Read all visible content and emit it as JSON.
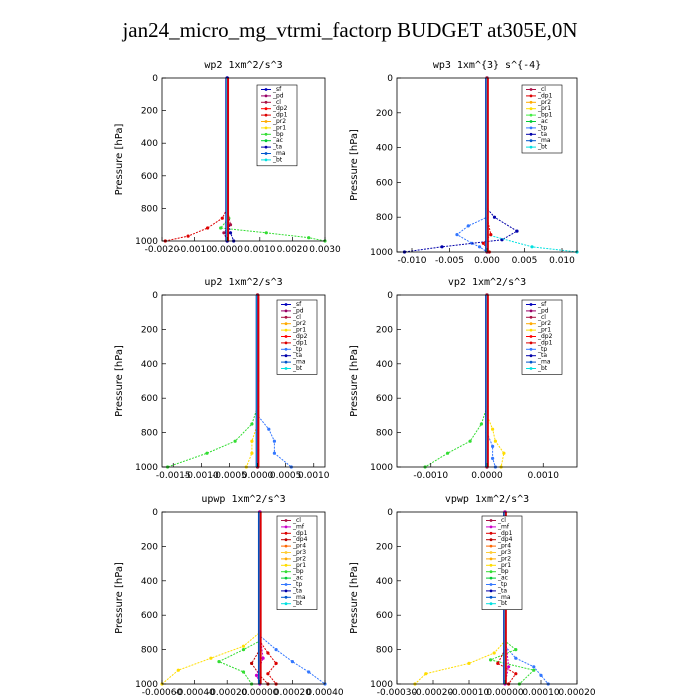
{
  "figure_title": "jan24_micro_mg_vtrmi_factorp  BUDGET at305E,0N",
  "colors": {
    "sf": "#0000bb",
    "pd": "#990066",
    "cl": "#aa1144",
    "dp2": "#ff0000",
    "dp1": "#dd0000",
    "pr2": "#ffaa00",
    "pr1": "#ffdd00",
    "bp": "#33dd33",
    "ac": "#00cc33",
    "tp": "#3377ff",
    "ta": "#0000aa",
    "ma": "#0055cc",
    "bt": "#00e0e0",
    "mf": "#cc00cc",
    "dp4": "#bb0000",
    "pr4": "#ff6600",
    "pr3": "#ffcc33",
    "bp1": "#44ee44"
  },
  "chart_data": [
    {
      "id": "wp2",
      "type": "line",
      "title": "wp2  1xm^2/s^3",
      "ylabel": "Pressure  [hPa]",
      "xlim": [
        -0.002,
        0.003
      ],
      "ylim": [
        1000,
        0
      ],
      "xticks": [
        -0.002,
        -0.001,
        0,
        0.001,
        0.002,
        0.003
      ],
      "xtick_labels": [
        "-0.0020",
        "-0.0010",
        "0.0000",
        "0.0010",
        "0.0020",
        "0.0030"
      ],
      "yticks": [
        0,
        200,
        400,
        600,
        800,
        1000
      ],
      "legend": [
        "_sf",
        "_pd",
        "_cl",
        "_dp2",
        "_dp1",
        "_pr2",
        "_pr1",
        "_bp",
        "_ac",
        "_ta",
        "_ma",
        "_bt"
      ],
      "legend_keys": [
        "sf",
        "pd",
        "cl",
        "dp2",
        "dp1",
        "pr2",
        "pr1",
        "bp",
        "ac",
        "ta",
        "ma",
        "bt"
      ],
      "series": [
        {
          "key": "dp1",
          "x": [
            0,
            0,
            0,
            -0.00015,
            -0.0006,
            -0.0012,
            -0.0019
          ],
          "y": [
            0,
            700,
            800,
            860,
            920,
            970,
            1000
          ]
        },
        {
          "key": "bp",
          "x": [
            0,
            0,
            5e-05,
            -0.0002,
            0.0012,
            0.0025,
            0.003
          ],
          "y": [
            0,
            800,
            860,
            920,
            950,
            980,
            1000
          ]
        },
        {
          "key": "pd",
          "x": [
            0,
            0,
            0,
            0,
            0
          ],
          "y": [
            0,
            400,
            800,
            950,
            1000
          ]
        },
        {
          "key": "cl",
          "x": [
            0,
            0,
            0.0001,
            -0.0001,
            0
          ],
          "y": [
            0,
            800,
            900,
            950,
            1000
          ]
        },
        {
          "key": "ta",
          "x": [
            0,
            0,
            0.0001,
            0.0002
          ],
          "y": [
            0,
            850,
            950,
            1000
          ]
        },
        {
          "key": "sf",
          "x": [
            0,
            0,
            0
          ],
          "y": [
            0,
            900,
            1000
          ]
        }
      ]
    },
    {
      "id": "wp3",
      "type": "line",
      "title": "wp3  1xm^{3} s^{-4}",
      "ylabel": "Pressure  [hPa]",
      "xlim": [
        -0.012,
        0.012
      ],
      "ylim": [
        1000,
        0
      ],
      "xticks": [
        -0.01,
        -0.005,
        0,
        0.005,
        0.01
      ],
      "xtick_labels": [
        "-0.010",
        "-0.005",
        "0.000",
        "0.005",
        "0.010"
      ],
      "yticks": [
        0,
        200,
        400,
        600,
        800,
        1000
      ],
      "legend": [
        "_cl",
        "_dp1",
        "_pr2",
        "_pr1",
        "_bp1",
        "_ac",
        "_tp",
        "_ta",
        "_ma",
        "_bt"
      ],
      "legend_keys": [
        "cl",
        "dp1",
        "pr2",
        "pr1",
        "bp1",
        "ac",
        "tp",
        "ta",
        "ma",
        "bt"
      ],
      "series": [
        {
          "key": "tp",
          "x": [
            0,
            0,
            0,
            -0.0025,
            -0.004,
            -0.002,
            -0.001,
            0
          ],
          "y": [
            0,
            700,
            800,
            850,
            900,
            950,
            970,
            1000
          ]
        },
        {
          "key": "ta",
          "x": [
            0,
            0,
            0.001,
            0.004,
            0.002,
            -0.006,
            -0.011
          ],
          "y": [
            0,
            750,
            800,
            880,
            930,
            970,
            1000
          ]
        },
        {
          "key": "bt",
          "x": [
            0,
            0,
            0.006,
            0.012
          ],
          "y": [
            0,
            900,
            970,
            1000
          ]
        },
        {
          "key": "dp1",
          "x": [
            0,
            0,
            0.0005,
            -0.0005,
            0.0003
          ],
          "y": [
            0,
            800,
            900,
            950,
            1000
          ]
        },
        {
          "key": "cl",
          "x": [
            0,
            0,
            0
          ],
          "y": [
            0,
            600,
            1000
          ]
        }
      ]
    },
    {
      "id": "up2",
      "type": "line",
      "title": "up2  1xm^2/s^3",
      "ylabel": "Pressure  [hPa]",
      "xlim": [
        -0.0017,
        0.0012
      ],
      "ylim": [
        1000,
        0
      ],
      "xticks": [
        -0.0015,
        -0.001,
        -0.0005,
        0,
        0.0005,
        0.001
      ],
      "xtick_labels": [
        "-0.0015",
        "-0.0010",
        "-0.0005",
        "0.0000",
        "0.0005",
        "0.0010"
      ],
      "yticks": [
        0,
        200,
        400,
        600,
        800,
        1000
      ],
      "legend": [
        "_sf",
        "_pd",
        "_cl",
        "_pr2",
        "_pr1",
        "_dp2",
        "_dp1",
        "_tp",
        "_ta",
        "_ma",
        "_bt"
      ],
      "legend_keys": [
        "sf",
        "pd",
        "cl",
        "pr2",
        "pr1",
        "dp2",
        "dp1",
        "tp",
        "ta",
        "ma",
        "bt"
      ],
      "series": [
        {
          "key": "bp",
          "x": [
            0,
            0,
            -0.0001,
            -0.0004,
            -0.0009,
            -0.0016
          ],
          "y": [
            0,
            650,
            750,
            850,
            920,
            1000
          ]
        },
        {
          "key": "tp",
          "x": [
            0,
            0,
            0.0002,
            0.0003,
            0.0003,
            0.0006
          ],
          "y": [
            0,
            700,
            780,
            850,
            920,
            1000
          ]
        },
        {
          "key": "pr1",
          "x": [
            0,
            0,
            -0.0001,
            -0.0001,
            -0.0002
          ],
          "y": [
            0,
            750,
            850,
            920,
            1000
          ]
        },
        {
          "key": "dp1",
          "x": [
            0,
            0,
            0,
            0
          ],
          "y": [
            0,
            500,
            900,
            1000
          ]
        },
        {
          "key": "cl",
          "x": [
            0,
            0,
            0
          ],
          "y": [
            0,
            700,
            1000
          ]
        }
      ]
    },
    {
      "id": "vp2",
      "type": "line",
      "title": "vp2  1xm^2/s^3",
      "ylabel": "Pressure  [hPa]",
      "xlim": [
        -0.0016,
        0.0016
      ],
      "ylim": [
        1000,
        0
      ],
      "xticks": [
        -0.001,
        0,
        0.001
      ],
      "xtick_labels": [
        "-0.0010",
        "0.0000",
        "0.0010"
      ],
      "yticks": [
        0,
        200,
        400,
        600,
        800,
        1000
      ],
      "legend": [
        "_sf",
        "_pd",
        "_cl",
        "_pr2",
        "_pr1",
        "_dp2",
        "_dp1",
        "_tp",
        "_ta",
        "_ma",
        "_bt"
      ],
      "legend_keys": [
        "sf",
        "pd",
        "cl",
        "pr2",
        "pr1",
        "dp2",
        "dp1",
        "tp",
        "ta",
        "ma",
        "bt"
      ],
      "series": [
        {
          "key": "bp",
          "x": [
            0,
            0,
            -0.0001,
            -0.0003,
            -0.0007,
            -0.0011
          ],
          "y": [
            0,
            650,
            750,
            850,
            920,
            1000
          ]
        },
        {
          "key": "pr1",
          "x": [
            0,
            0,
            0.0001,
            0.00015,
            0.0003,
            0.00025
          ],
          "y": [
            0,
            700,
            780,
            850,
            920,
            1000
          ]
        },
        {
          "key": "tp",
          "x": [
            0,
            0,
            0.0001,
            0.0001,
            0.00015
          ],
          "y": [
            0,
            800,
            880,
            950,
            1000
          ]
        },
        {
          "key": "dp1",
          "x": [
            0,
            0,
            0,
            0
          ],
          "y": [
            0,
            500,
            900,
            1000
          ]
        },
        {
          "key": "cl",
          "x": [
            0,
            0,
            0
          ],
          "y": [
            0,
            700,
            1000
          ]
        }
      ]
    },
    {
      "id": "upwp",
      "type": "line",
      "title": "upwp  1xm^2/s^3",
      "ylabel": "Pressure  [hPa]",
      "xlim": [
        -0.0006,
        0.0004
      ],
      "ylim": [
        1000,
        0
      ],
      "xticks": [
        -0.0006,
        -0.0004,
        -0.0002,
        0,
        0.0002,
        0.0004
      ],
      "xtick_labels": [
        "-0.00060",
        "-0.00040",
        "-0.00020",
        "0.00000",
        "0.00020",
        "0.00040"
      ],
      "yticks": [
        0,
        200,
        400,
        600,
        800,
        1000
      ],
      "legend": [
        "_cl",
        "_mf",
        "_dp1",
        "_dp4",
        "_pr4",
        "_pr3",
        "_pr2",
        "_pr1",
        "_bp",
        "_ac",
        "_tp",
        "_ta",
        "_ma",
        "_bt"
      ],
      "legend_keys": [
        "cl",
        "mf",
        "dp1",
        "dp4",
        "pr4",
        "pr3",
        "pr2",
        "pr1",
        "bp",
        "ac",
        "tp",
        "ta",
        "ma",
        "bt"
      ],
      "series": [
        {
          "key": "pr1",
          "x": [
            0,
            0,
            -0.0001,
            -0.0003,
            -0.0005,
            -0.0006
          ],
          "y": [
            0,
            700,
            780,
            850,
            920,
            1000
          ]
        },
        {
          "key": "tp",
          "x": [
            0,
            0,
            0.0001,
            0.0002,
            0.0003,
            0.0004
          ],
          "y": [
            0,
            720,
            800,
            870,
            930,
            1000
          ]
        },
        {
          "key": "bp",
          "x": [
            0,
            0,
            -0.0001,
            -0.00025,
            -0.0001,
            -5e-05
          ],
          "y": [
            0,
            750,
            800,
            870,
            930,
            1000
          ]
        },
        {
          "key": "dp1",
          "x": [
            0,
            0,
            5e-05,
            0.0001,
            5e-05,
            0.0001
          ],
          "y": [
            0,
            750,
            820,
            880,
            940,
            1000
          ]
        },
        {
          "key": "dp4",
          "x": [
            0,
            0,
            -5e-05,
            0,
            5e-05
          ],
          "y": [
            0,
            800,
            880,
            950,
            1000
          ]
        },
        {
          "key": "mf",
          "x": [
            0,
            0,
            2e-05,
            -2e-05,
            0
          ],
          "y": [
            0,
            700,
            850,
            950,
            1000
          ]
        }
      ]
    },
    {
      "id": "vpwp",
      "type": "line",
      "title": "vpwp  1xm^2/s^3",
      "ylabel": "Pressure  [hPa]",
      "xlim": [
        -0.0003,
        0.0002
      ],
      "ylim": [
        1000,
        0
      ],
      "xticks": [
        -0.0003,
        -0.0002,
        -0.0001,
        0,
        0.0001,
        0.0002
      ],
      "xtick_labels": [
        "-0.00030",
        "-0.00020",
        "-0.00010",
        "0.00000",
        "0.00010",
        "0.00020"
      ],
      "yticks": [
        0,
        200,
        400,
        600,
        800,
        1000
      ],
      "legend": [
        "_cl",
        "_mf",
        "_dp1",
        "_dp4",
        "_pr4",
        "_pr3",
        "_pr2",
        "_pr1",
        "_bp",
        "_ac",
        "_tp",
        "_ta",
        "_ma",
        "_bt"
      ],
      "legend_keys": [
        "cl",
        "mf",
        "dp1",
        "dp4",
        "pr4",
        "pr3",
        "pr2",
        "pr1",
        "bp",
        "ac",
        "tp",
        "ta",
        "ma",
        "bt"
      ],
      "series": [
        {
          "key": "pr1",
          "x": [
            0,
            0,
            -3e-05,
            -0.0001,
            -0.00022,
            -0.00025
          ],
          "y": [
            0,
            750,
            820,
            880,
            940,
            1000
          ]
        },
        {
          "key": "tp",
          "x": [
            0,
            0,
            3e-05,
            8e-05,
            0.0001,
            0.00012
          ],
          "y": [
            0,
            780,
            850,
            900,
            950,
            1000
          ]
        },
        {
          "key": "bp",
          "x": [
            0,
            0,
            3e-05,
            -4e-05,
            8e-05,
            4e-05
          ],
          "y": [
            0,
            750,
            800,
            860,
            920,
            1000
          ]
        },
        {
          "key": "dp1",
          "x": [
            0,
            0,
            -2e-05,
            3e-05,
            1e-05
          ],
          "y": [
            0,
            800,
            880,
            940,
            1000
          ]
        },
        {
          "key": "mf",
          "x": [
            0,
            0,
            1e-05,
            0
          ],
          "y": [
            0,
            700,
            900,
            1000
          ]
        }
      ]
    }
  ]
}
